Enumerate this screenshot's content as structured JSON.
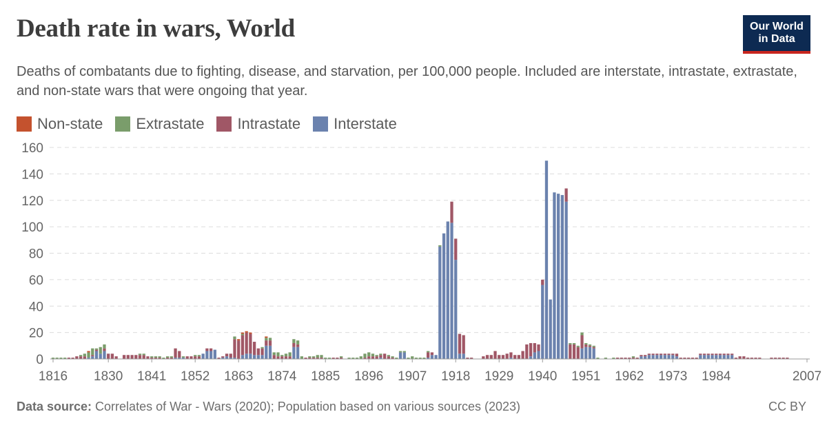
{
  "header": {
    "title": "Death rate in wars, World",
    "subtitle": "Deaths of combatants due to fighting, disease, and starvation, per 100,000 people. Included are interstate, intrastate, extrastate, and non-state wars that were ongoing that year.",
    "logo_line1": "Our World",
    "logo_line2": "in Data"
  },
  "footer": {
    "source_label": "Data source:",
    "source_text": " Correlates of War - Wars (2020); Population based on various sources (2023)",
    "license": "CC BY"
  },
  "colors": {
    "Non-state": "#c4522e",
    "Extrastate": "#7a9d6b",
    "Intrastate": "#a05766",
    "Interstate": "#6b82ae"
  },
  "chart_data": {
    "type": "bar",
    "stacked": true,
    "x_start": 1816,
    "x_end": 2007,
    "ylim": [
      0,
      160
    ],
    "yticks": [
      0,
      20,
      40,
      60,
      80,
      100,
      120,
      140,
      160
    ],
    "xticks": [
      1816,
      1830,
      1841,
      1852,
      1863,
      1874,
      1885,
      1896,
      1907,
      1918,
      1929,
      1940,
      1951,
      1962,
      1973,
      1984,
      2007
    ],
    "grid": true,
    "legend_position": "top-left",
    "series_order": [
      "Non-state",
      "Extrastate",
      "Intrastate",
      "Interstate"
    ],
    "stack_order": [
      "Interstate",
      "Intrastate",
      "Extrastate",
      "Non-state"
    ],
    "series": {
      "Interstate": {
        "1825": 1,
        "1826": 2,
        "1827": 6,
        "1828": 4,
        "1829": 6,
        "1847": 1,
        "1848": 1,
        "1849": 1,
        "1854": 4,
        "1855": 6,
        "1856": 6,
        "1857": 7,
        "1859": 1,
        "1860": 2,
        "1861": 1,
        "1862": 1,
        "1864": 3,
        "1865": 4,
        "1866": 4,
        "1867": 3,
        "1868": 3,
        "1869": 3,
        "1870": 10,
        "1871": 10,
        "1877": 9,
        "1878": 9,
        "1899": 1,
        "1904": 5,
        "1905": 5,
        "1911": 1,
        "1912": 3,
        "1913": 3,
        "1914": 85,
        "1915": 95,
        "1916": 104,
        "1917": 103,
        "1918": 75,
        "1919": 4,
        "1920": 4,
        "1932": 1,
        "1937": 2,
        "1938": 5,
        "1939": 6,
        "1940": 56,
        "1941": 150,
        "1942": 45,
        "1943": 126,
        "1944": 125,
        "1945": 124,
        "1946": 119,
        "1950": 8,
        "1951": 9,
        "1952": 9,
        "1953": 8,
        "1965": 2,
        "1966": 2,
        "1967": 3,
        "1968": 3,
        "1969": 3,
        "1970": 3,
        "1971": 3,
        "1972": 3,
        "1973": 3,
        "1974": 2,
        "1980": 3,
        "1981": 3,
        "1982": 3,
        "1983": 3,
        "1984": 3,
        "1985": 3,
        "1986": 3,
        "1987": 3,
        "1988": 3
      },
      "Intrastate": {
        "1820": 1,
        "1821": 1,
        "1822": 2,
        "1823": 2,
        "1824": 2,
        "1826": 1,
        "1827": 1,
        "1829": 2,
        "1830": 4,
        "1831": 4,
        "1832": 2,
        "1834": 3,
        "1835": 3,
        "1836": 3,
        "1837": 3,
        "1838": 3,
        "1839": 3,
        "1840": 2,
        "1841": 1,
        "1842": 1,
        "1843": 1,
        "1845": 1,
        "1846": 1,
        "1847": 7,
        "1848": 5,
        "1850": 2,
        "1851": 2,
        "1852": 2,
        "1853": 2,
        "1855": 2,
        "1856": 2,
        "1858": 1,
        "1859": 1,
        "1860": 2,
        "1861": 3,
        "1862": 14,
        "1863": 14,
        "1864": 15,
        "1865": 16,
        "1866": 15,
        "1867": 10,
        "1868": 5,
        "1869": 5,
        "1870": 4,
        "1871": 4,
        "1872": 3,
        "1873": 2,
        "1874": 2,
        "1875": 2,
        "1876": 2,
        "1877": 3,
        "1878": 2,
        "1880": 1,
        "1881": 1,
        "1882": 1,
        "1883": 1,
        "1884": 1,
        "1887": 1,
        "1888": 1,
        "1889": 1,
        "1895": 1,
        "1896": 2,
        "1897": 2,
        "1898": 2,
        "1899": 2,
        "1900": 4,
        "1901": 2,
        "1902": 1,
        "1911": 4,
        "1912": 2,
        "1917": 16,
        "1918": 16,
        "1919": 15,
        "1920": 14,
        "1921": 1,
        "1922": 1,
        "1925": 2,
        "1926": 3,
        "1927": 3,
        "1928": 6,
        "1929": 3,
        "1930": 3,
        "1931": 4,
        "1932": 4,
        "1933": 3,
        "1934": 3,
        "1935": 6,
        "1936": 11,
        "1937": 10,
        "1938": 7,
        "1939": 5,
        "1940": 4,
        "1946": 10,
        "1947": 11,
        "1948": 11,
        "1949": 9,
        "1950": 10,
        "1951": 2,
        "1952": 1,
        "1953": 1,
        "1959": 1,
        "1960": 1,
        "1961": 1,
        "1962": 1,
        "1963": 1,
        "1964": 1,
        "1965": 1,
        "1966": 1,
        "1967": 1,
        "1968": 1,
        "1969": 1,
        "1970": 1,
        "1971": 1,
        "1972": 1,
        "1973": 1,
        "1974": 2,
        "1975": 1,
        "1976": 1,
        "1977": 1,
        "1978": 1,
        "1979": 1,
        "1980": 1,
        "1981": 1,
        "1982": 1,
        "1983": 1,
        "1984": 1,
        "1985": 1,
        "1986": 1,
        "1987": 1,
        "1988": 1,
        "1989": 1,
        "1990": 2,
        "1991": 2,
        "1992": 1,
        "1993": 1,
        "1994": 1,
        "1995": 1,
        "1998": 1,
        "1999": 1,
        "2000": 1,
        "2001": 1,
        "2002": 1
      },
      "Extrastate": {
        "1816": 1,
        "1817": 1,
        "1818": 1,
        "1819": 1,
        "1823": 1,
        "1824": 2,
        "1825": 4,
        "1826": 5,
        "1827": 1,
        "1828": 5,
        "1829": 3,
        "1838": 1,
        "1839": 1,
        "1841": 1,
        "1842": 1,
        "1843": 1,
        "1844": 1,
        "1845": 1,
        "1846": 1,
        "1849": 1,
        "1852": 1,
        "1853": 1,
        "1862": 2,
        "1864": 1,
        "1869": 1,
        "1870": 2,
        "1871": 2,
        "1872": 2,
        "1873": 3,
        "1874": 1,
        "1875": 2,
        "1876": 3,
        "1877": 3,
        "1878": 3,
        "1879": 2,
        "1881": 1,
        "1882": 1,
        "1883": 2,
        "1884": 2,
        "1885": 1,
        "1886": 1,
        "1889": 1,
        "1891": 1,
        "1892": 1,
        "1893": 1,
        "1894": 2,
        "1895": 3,
        "1896": 3,
        "1897": 2,
        "1898": 1,
        "1899": 1,
        "1901": 1,
        "1902": 1,
        "1903": 1,
        "1904": 1,
        "1905": 1,
        "1906": 1,
        "1907": 2,
        "1908": 1,
        "1909": 1,
        "1910": 1,
        "1911": 1,
        "1914": 1,
        "1947": 1,
        "1948": 1,
        "1949": 1,
        "1950": 2,
        "1951": 1,
        "1952": 1,
        "1953": 1,
        "1954": 1,
        "1956": 1,
        "1958": 1,
        "1963": 1
      },
      "Non-state": {
        "1825": 1,
        "1863": 1,
        "1864": 1,
        "1865": 1,
        "1866": 1,
        "1870": 1
      }
    }
  }
}
